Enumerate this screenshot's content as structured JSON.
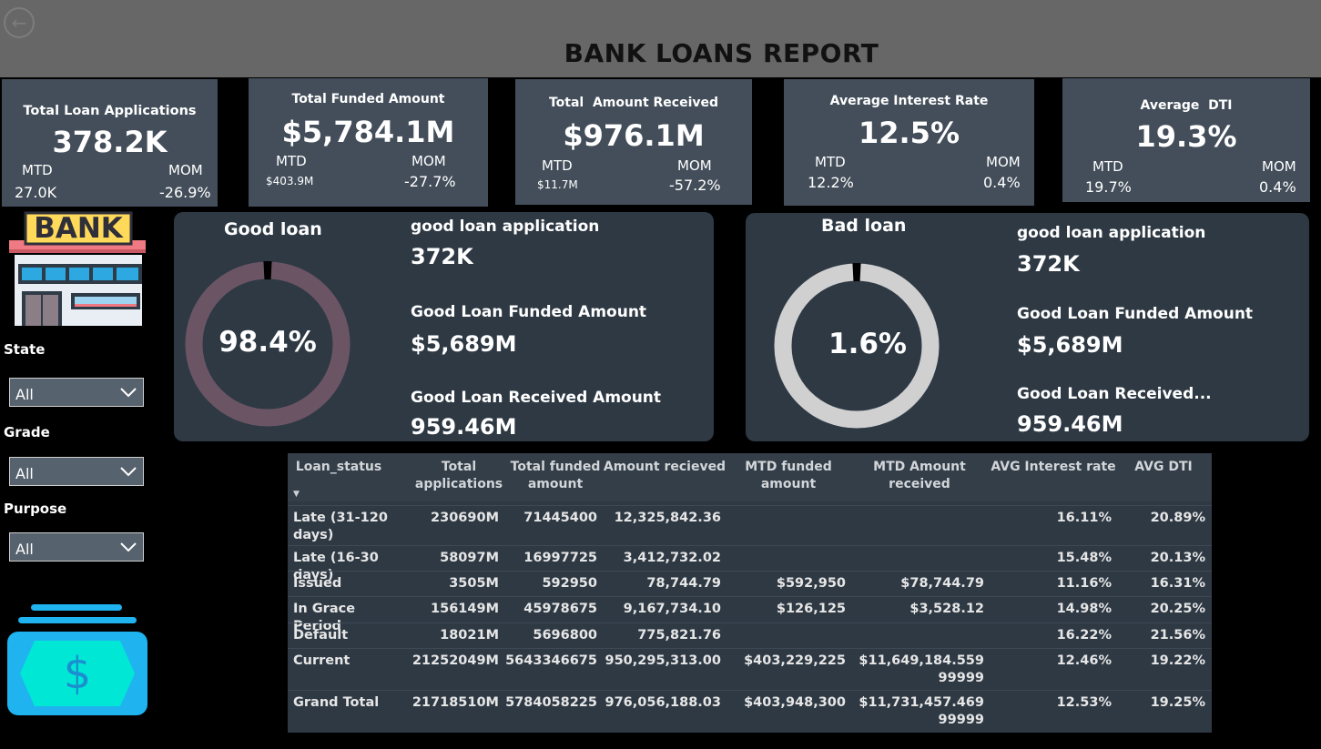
{
  "header": {
    "back_icon": "back-arrow-icon",
    "title": "BANK LOANS REPORT"
  },
  "kpis": [
    {
      "label": "Total Loan Applications",
      "value": "378.2K",
      "mtd_label": "MTD",
      "mtd": "27.0K",
      "mom_label": "MOM",
      "mom": "-26.9%"
    },
    {
      "label": "Total Funded Amount",
      "value": "$5,784.1M",
      "mtd_label": "MTD",
      "mtd": "$403.9M",
      "mom_label": "MOM",
      "mom": "-27.7%"
    },
    {
      "label": "Total  Amount Received",
      "value": "$976.1M",
      "mtd_label": "MTD",
      "mtd": "$11.7M",
      "mom_label": "MOM",
      "mom": "-57.2%"
    },
    {
      "label": "Average Interest Rate",
      "value": "12.5%",
      "mtd_label": "MTD",
      "mtd": "12.2%",
      "mom_label": "MOM",
      "mom": "0.4%"
    },
    {
      "label": "Average  DTI",
      "value": "19.3%",
      "mtd_label": "MTD",
      "mtd": "19.7%",
      "mom_label": "MOM",
      "mom": "0.4%"
    }
  ],
  "good_loan": {
    "title": "Good loan",
    "percent_label": "98.4%",
    "percent": 98.4,
    "app_label": "good loan application",
    "app_value": "372K",
    "funded_label": "Good Loan Funded Amount",
    "funded_value": "$5,689M",
    "received_label": "Good Loan Received Amount",
    "received_value": "959.46M",
    "ring_color": "#6b5565",
    "gap_color": "#000000"
  },
  "bad_loan": {
    "title": "Bad loan",
    "percent_label": "1.6%",
    "percent": 1.6,
    "app_label": "good loan application",
    "app_value": "372K",
    "funded_label": "Good Loan Funded Amount",
    "funded_value": "$5,689M",
    "received_label": "Good Loan Received...",
    "received_value": "959.46M",
    "ring_color": "#d0d0d0",
    "gap_color": "#000000"
  },
  "sidebar": {
    "bank_sign": "BANK",
    "state": {
      "label": "State",
      "value": "All"
    },
    "grade": {
      "label": "Grade",
      "value": "All"
    },
    "purpose": {
      "label": "Purpose",
      "value": "All"
    },
    "money_icon": "dollar-bill-icon"
  },
  "table": {
    "headers": [
      "Loan_status",
      "Total applications",
      "Total funded amount",
      "Amount recieved",
      "MTD funded amount",
      "MTD Amount received",
      "AVG Interest rate",
      "AVG DTI"
    ],
    "rows": [
      [
        "Late (31-120 days)",
        "230690M",
        "71445400",
        "12,325,842.36",
        "",
        "",
        "16.11%",
        "20.89%"
      ],
      [
        "Late (16-30 days)",
        "58097M",
        "16997725",
        "3,412,732.02",
        "",
        "",
        "15.48%",
        "20.13%"
      ],
      [
        "Issued",
        "3505M",
        "592950",
        "78,744.79",
        "$592,950",
        "$78,744.79",
        "11.16%",
        "16.31%"
      ],
      [
        "In Grace Period",
        "156149M",
        "45978675",
        "9,167,734.10",
        "$126,125",
        "$3,528.12",
        "14.98%",
        "20.25%"
      ],
      [
        "Default",
        "18021M",
        "5696800",
        "775,821.76",
        "",
        "",
        "16.22%",
        "21.56%"
      ],
      [
        "Current",
        "21252049M",
        "5643346675",
        "950,295,313.00",
        "$403,229,225",
        "$11,649,184.55999999",
        "12.46%",
        "19.22%"
      ]
    ],
    "total": [
      "Grand Total",
      "21718510M",
      "5784058225",
      "976,056,188.03",
      "$403,948,300",
      "$11,731,457.46999999",
      "12.53%",
      "19.25%"
    ]
  }
}
